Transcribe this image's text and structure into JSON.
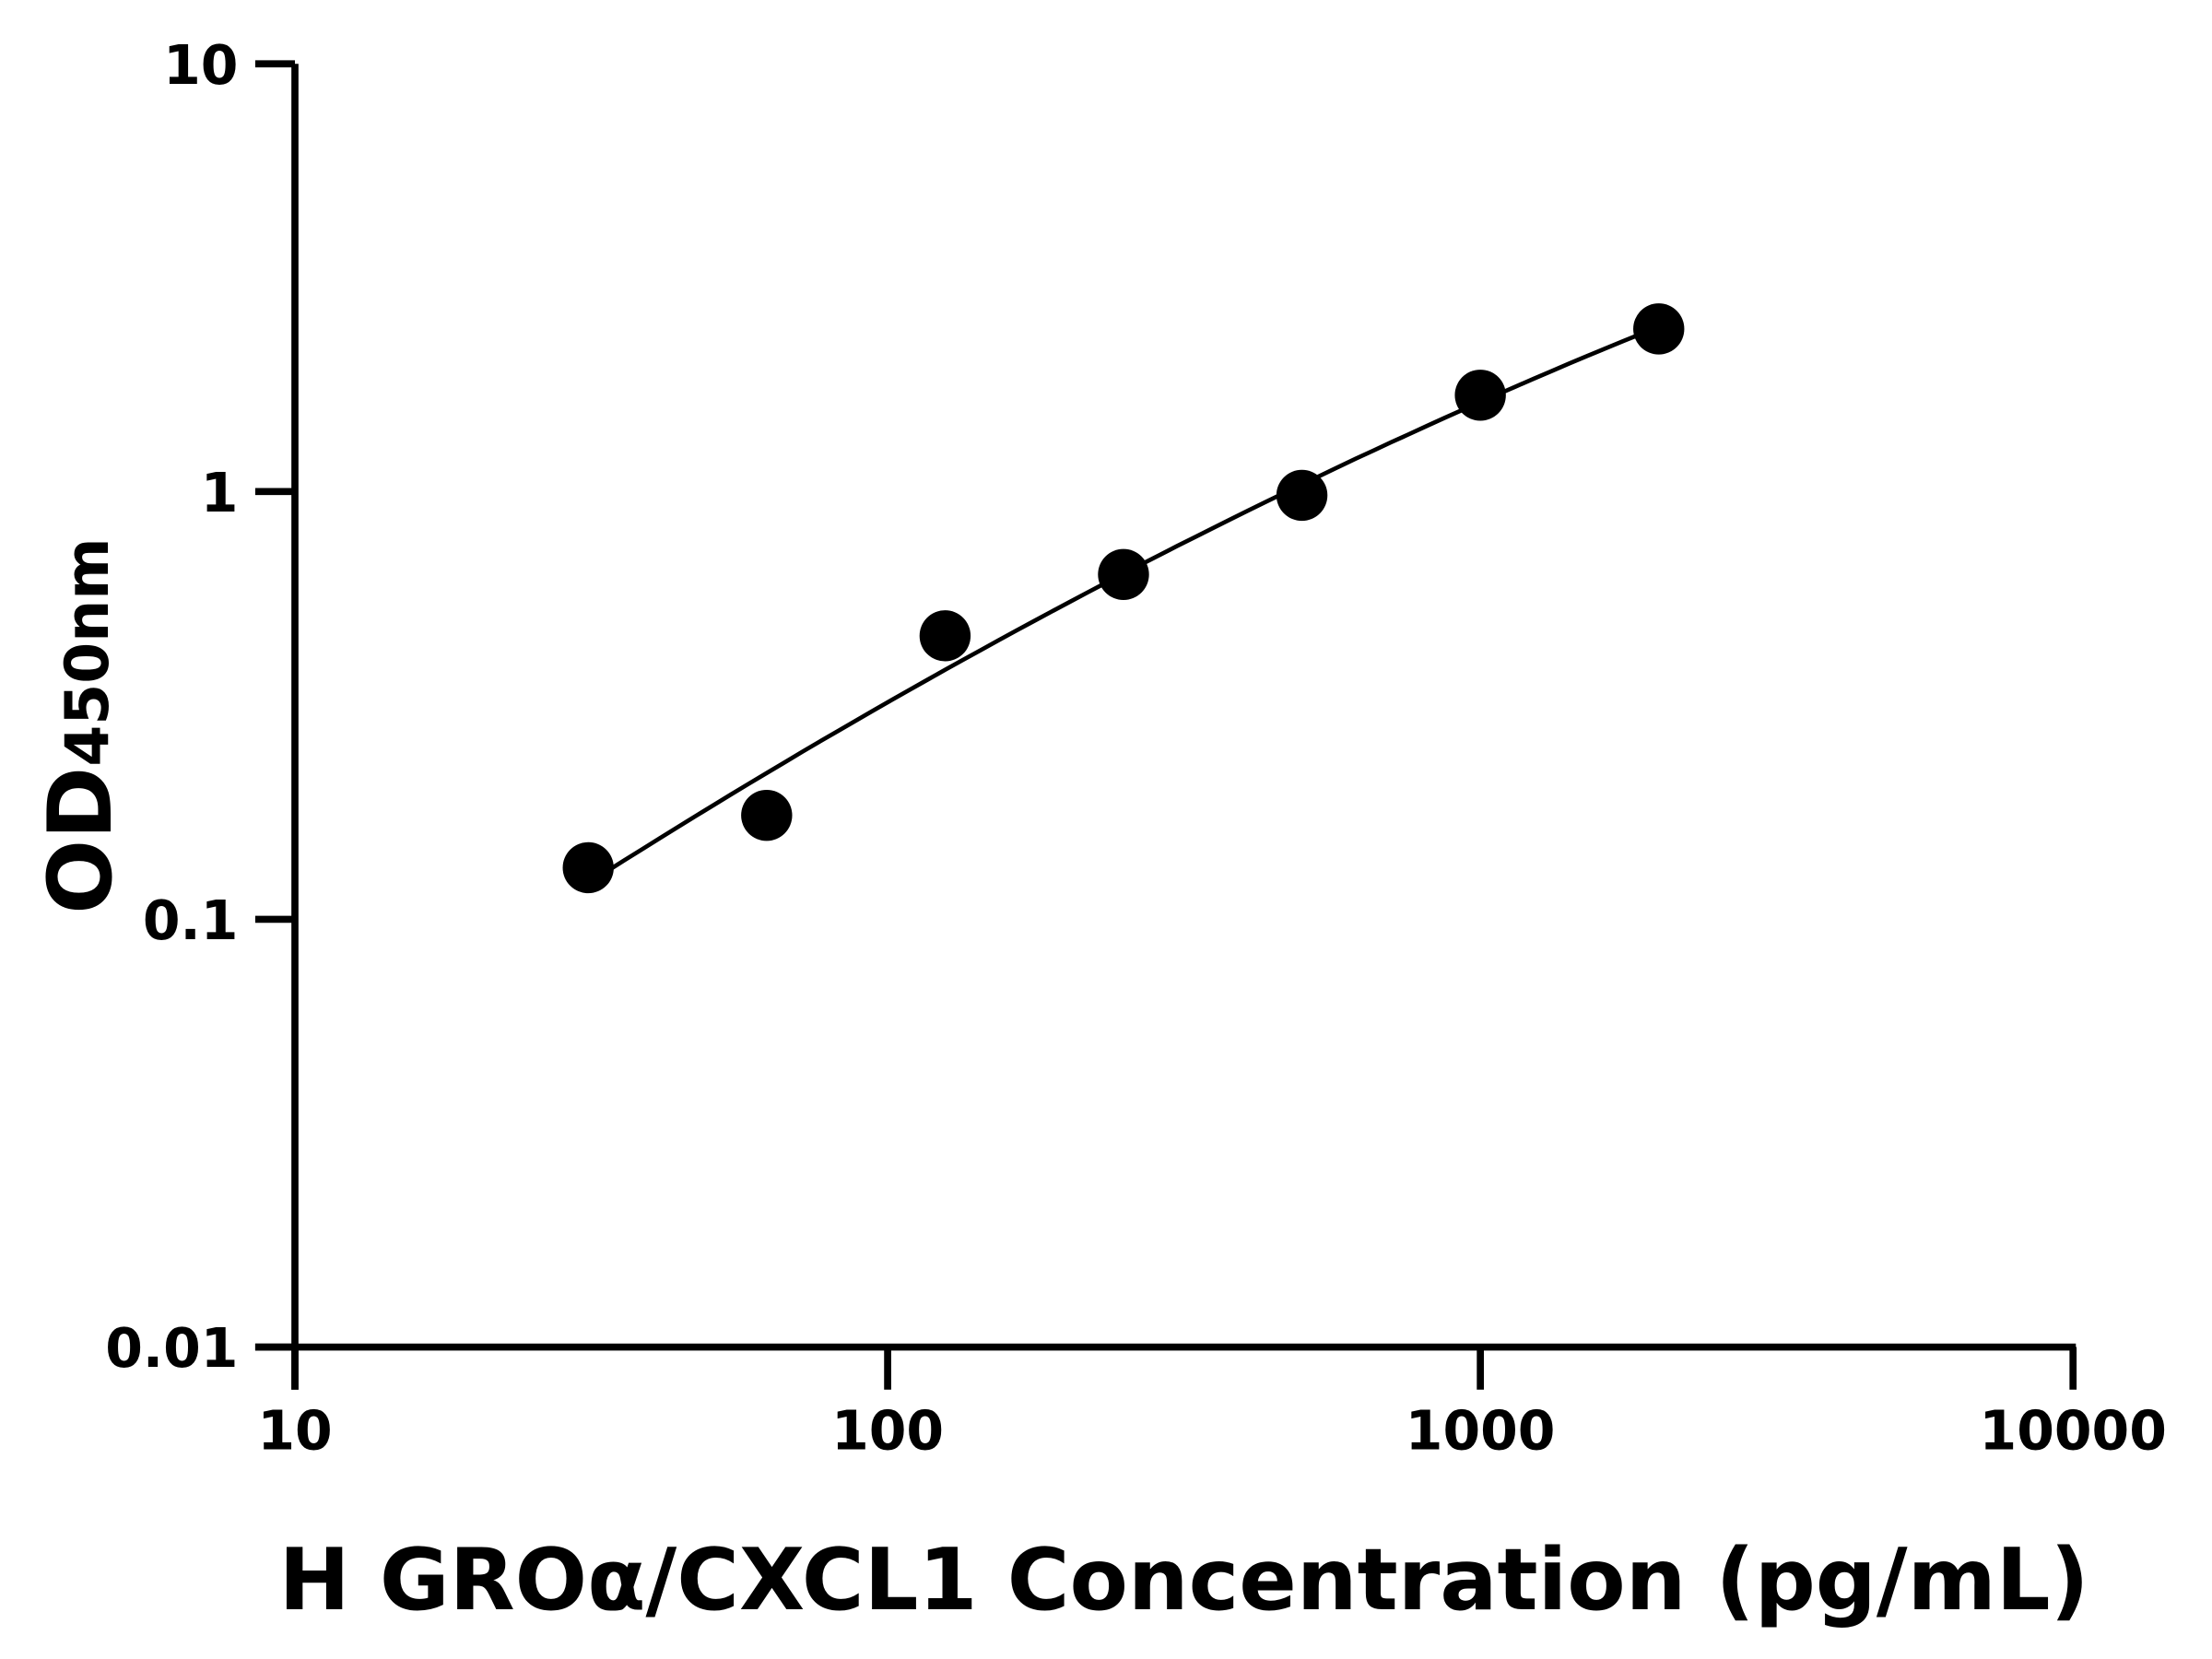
{
  "chart_data": {
    "type": "scatter",
    "xlabel": "H GROα/CXCL1 Concentration (pg/mL)",
    "ylabel_main": "OD",
    "ylabel_sub": "450nm",
    "xscale": "log",
    "yscale": "log",
    "xlim": [
      10,
      10000
    ],
    "ylim": [
      0.01,
      10
    ],
    "xticks": [
      "10",
      "100",
      "1000",
      "10000"
    ],
    "yticks": [
      "0.01",
      "0.1",
      "1",
      "10"
    ],
    "grid": false,
    "x": [
      31.25,
      62.5,
      125,
      250,
      500,
      1000,
      2000
    ],
    "y": [
      0.132,
      0.175,
      0.46,
      0.64,
      0.98,
      1.68,
      2.4
    ],
    "fit_line": true,
    "colors": {
      "points": "#000000",
      "line": "#000000"
    }
  }
}
